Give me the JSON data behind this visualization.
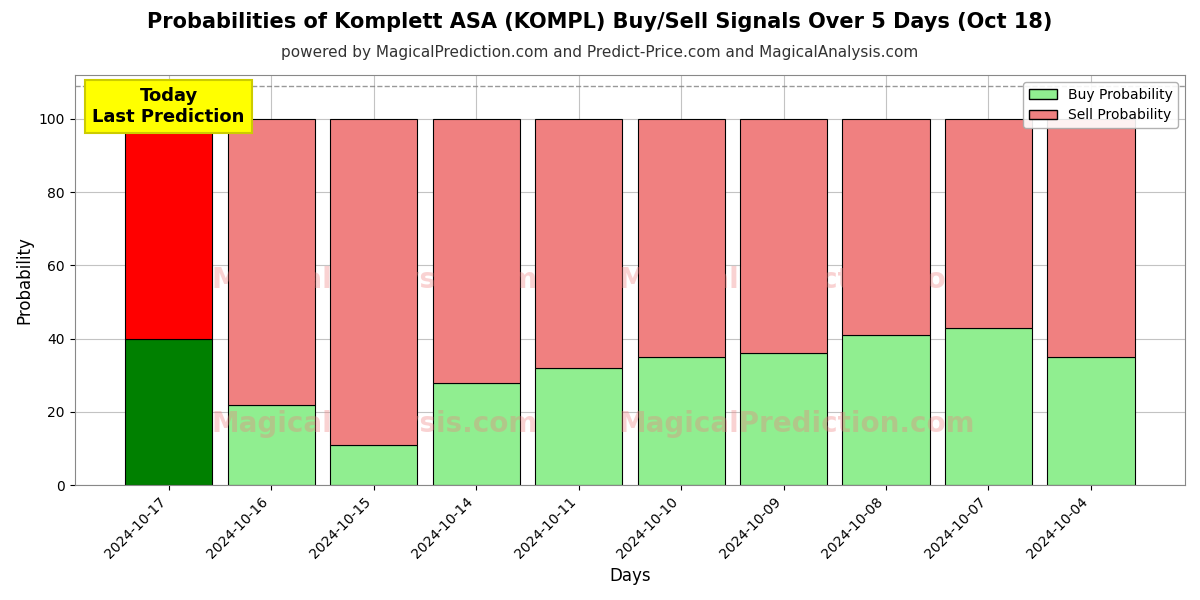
{
  "title": "Probabilities of Komplett ASA (KOMPL) Buy/Sell Signals Over 5 Days (Oct 18)",
  "subtitle": "powered by MagicalPrediction.com and Predict-Price.com and MagicalAnalysis.com",
  "xlabel": "Days",
  "ylabel": "Probability",
  "categories": [
    "2024-10-17",
    "2024-10-16",
    "2024-10-15",
    "2024-10-14",
    "2024-10-11",
    "2024-10-10",
    "2024-10-09",
    "2024-10-08",
    "2024-10-07",
    "2024-10-04"
  ],
  "buy_values": [
    40,
    22,
    11,
    28,
    32,
    35,
    36,
    41,
    43,
    35
  ],
  "sell_values": [
    60,
    78,
    89,
    72,
    68,
    65,
    64,
    59,
    57,
    65
  ],
  "buy_color_today": "#008000",
  "sell_color_today": "#ff0000",
  "buy_color_others": "#90ee90",
  "sell_color_others": "#f08080",
  "bar_edge_color": "#000000",
  "bar_edge_width": 0.8,
  "ylim": [
    0,
    112
  ],
  "yticks": [
    0,
    20,
    40,
    60,
    80,
    100
  ],
  "dashed_line_y": 109,
  "watermark_line1": "MagicalAnalysis.com",
  "watermark_line2": "MagicalPrediction.com",
  "watermark_color": "#f08080",
  "watermark_alpha": 0.35,
  "annotation_text": "Today\nLast Prediction",
  "annotation_bg": "#ffff00",
  "annotation_edge": "#cccc00",
  "legend_buy_label": "Buy Probability",
  "legend_sell_label": "Sell Probability",
  "grid_color": "#aaaaaa",
  "grid_alpha": 0.7,
  "title_fontsize": 15,
  "subtitle_fontsize": 11,
  "axis_label_fontsize": 12,
  "background_color": "#ffffff"
}
